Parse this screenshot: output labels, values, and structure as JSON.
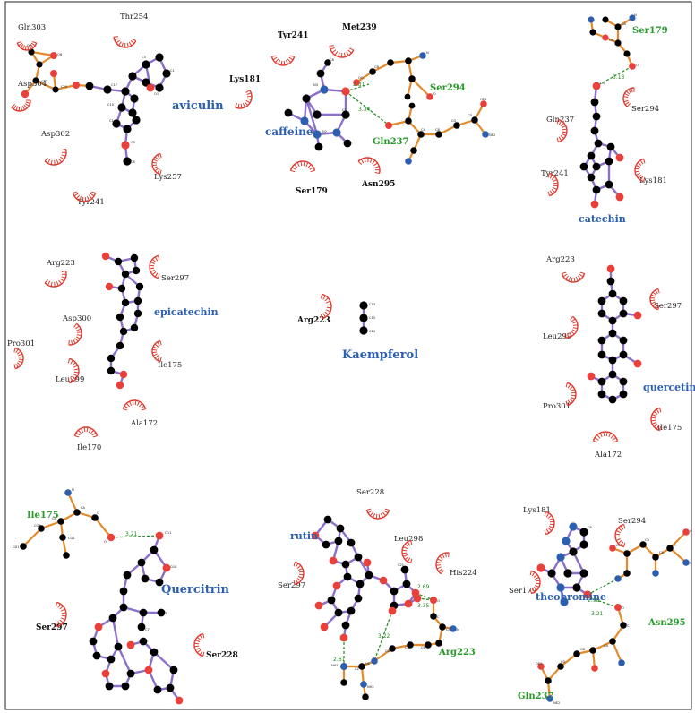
{
  "colors": {
    "ligand_bond": "#8b6fc9",
    "residue_bond": "#e38b2c",
    "carbon": "#000000",
    "oxygen": "#e8413b",
    "nitrogen": "#2c5fb0",
    "hbond": "#1e8a1e",
    "hydrophobic_arc": "#e03a2e",
    "ligand_label": "#2c5fb0",
    "hbond_residue_label": "#2a9a2a",
    "residue_label": "#222222"
  },
  "panels": [
    {
      "ligand": "aviculin",
      "residues": [
        "Gln303",
        "Thr254",
        "Asp304",
        "Asp302",
        "Lys257",
        "Tyr241"
      ],
      "hbond_residues": [],
      "distances": []
    },
    {
      "ligand": "caffeine",
      "residues": [
        "Tyr241",
        "Met239",
        "Lys181",
        "Ser179",
        "Asn295"
      ],
      "hbond_residues": [
        "Ser294",
        "Gln237"
      ],
      "distances": [
        "2.31",
        "3.34"
      ]
    },
    {
      "ligand": "catechin",
      "residues": [
        "Gln237",
        "Ser294",
        "Tyr241",
        "Lys181"
      ],
      "hbond_residues": [
        "Ser179"
      ],
      "distances": [
        "3.13"
      ]
    },
    {
      "ligand": "epicatechin",
      "residues": [
        "Arg223",
        "Ser297",
        "Asp300",
        "Pro301",
        "Ile175",
        "Leu299",
        "Ala172",
        "Ile170"
      ],
      "hbond_residues": [],
      "distances": []
    },
    {
      "ligand": "Kaempferol",
      "residues": [
        "Arg223"
      ],
      "hbond_residues": [],
      "distances": []
    },
    {
      "ligand": "quercetin",
      "residues": [
        "Arg223",
        "Ser297",
        "Leu299",
        "Pro301",
        "Ile175",
        "Ala172"
      ],
      "hbond_residues": [],
      "distances": []
    },
    {
      "ligand": "Quercitrin",
      "residues": [
        "Ser297",
        "Ser228"
      ],
      "hbond_residues": [
        "Ile175"
      ],
      "distances": [
        "3.21"
      ]
    },
    {
      "ligand": "rutin",
      "residues": [
        "Ser228",
        "Leu298",
        "His224",
        "Ser297"
      ],
      "hbond_residues": [
        "Arg223"
      ],
      "distances": [
        "2.69",
        "3.35",
        "3.22",
        "2.67"
      ]
    },
    {
      "ligand": "theobromine",
      "residues": [
        "Lys181",
        "Ser294",
        "Ser179"
      ],
      "hbond_residues": [
        "Asn295",
        "Gln237"
      ],
      "distances": [
        "2.98",
        "3.21"
      ]
    }
  ]
}
